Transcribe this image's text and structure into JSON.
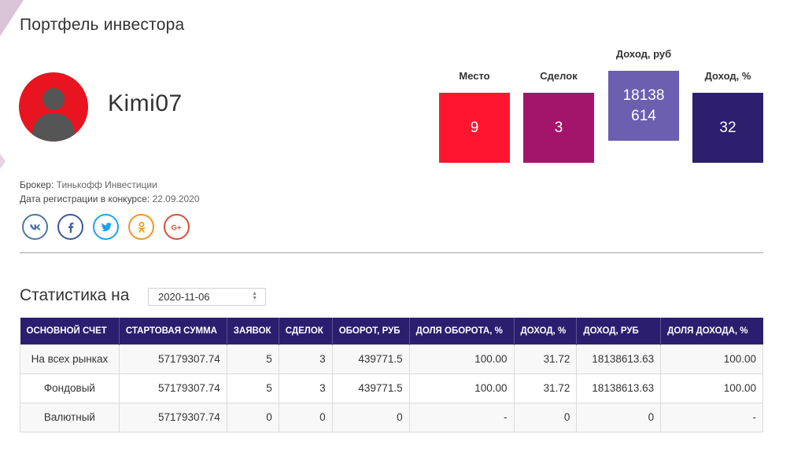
{
  "page": {
    "title": "Портфель инвестора"
  },
  "profile": {
    "username": "Kimi07",
    "broker_label": "Брокер:",
    "broker_value": "Тинькофф Инвестиции",
    "reg_label": "Дата регистрации в конкурсе:",
    "reg_value": "22.09.2020"
  },
  "stats": [
    {
      "label": "Место",
      "value": "9",
      "color": "#ff1530"
    },
    {
      "label": "Сделок",
      "value": "3",
      "color": "#a3156a"
    },
    {
      "label": "Доход, руб",
      "value_line1": "18138",
      "value_line2": "614",
      "color": "#6c5fb0"
    },
    {
      "label": "Доход, %",
      "value": "32",
      "color": "#2e1f6e"
    }
  ],
  "socials": [
    {
      "icon": "vk-icon",
      "color": "#4c75a3"
    },
    {
      "icon": "facebook-icon",
      "color": "#3b5998"
    },
    {
      "icon": "twitter-icon",
      "color": "#1da1f2"
    },
    {
      "icon": "odnoklassniki-icon",
      "color": "#f7931e"
    },
    {
      "icon": "google-plus-icon",
      "color": "#dd4b39"
    }
  ],
  "statistics": {
    "heading": "Статистика на",
    "date": "2020-11-06"
  },
  "table": {
    "headers": [
      "ОСНОВНОЙ СЧЕТ",
      "СТАРТОВАЯ СУММА",
      "ЗАЯВОК",
      "СДЕЛОК",
      "ОБОРОТ, РУБ",
      "ДОЛЯ ОБОРОТА, %",
      "ДОХОД, %",
      "ДОХОД, РУБ",
      "ДОЛЯ ДОХОДА, %"
    ],
    "rows": [
      [
        "На всех рынках",
        "57179307.74",
        "5",
        "3",
        "439771.5",
        "100.00",
        "31.72",
        "18138613.63",
        "100.00"
      ],
      [
        "Фондовый",
        "57179307.74",
        "5",
        "3",
        "439771.5",
        "100.00",
        "31.72",
        "18138613.63",
        "100.00"
      ],
      [
        "Валютный",
        "57179307.74",
        "0",
        "0",
        "0",
        "-",
        "0",
        "0",
        "-"
      ]
    ]
  }
}
